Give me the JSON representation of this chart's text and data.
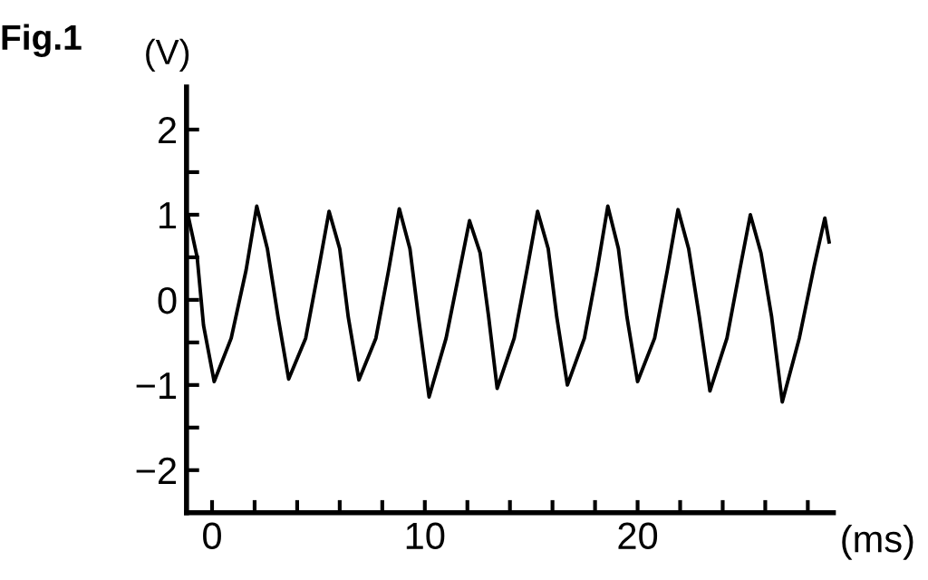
{
  "chart_data": {
    "type": "line",
    "title": "Fig.1",
    "ylabel": "(V)",
    "xlabel": "(ms)",
    "x": [
      -1.1,
      -0.7,
      -0.4,
      0.1,
      0.9,
      1.6,
      2.1,
      2.6,
      3.1,
      3.6,
      4.4,
      5.0,
      5.5,
      6.0,
      6.4,
      6.9,
      7.7,
      8.3,
      8.8,
      9.3,
      9.7,
      10.2,
      11.0,
      11.6,
      12.1,
      12.6,
      13.0,
      13.4,
      14.2,
      14.8,
      15.3,
      15.8,
      16.2,
      16.7,
      17.5,
      18.1,
      18.6,
      19.1,
      19.5,
      20.0,
      20.8,
      21.4,
      21.9,
      22.4,
      22.9,
      23.4,
      24.2,
      24.8,
      25.3,
      25.8,
      26.3,
      26.8,
      27.6,
      28.3,
      28.8,
      29.0
    ],
    "series": [
      {
        "color": "#000000",
        "values": [
          0.96,
          0.5,
          -0.3,
          -0.96,
          -0.45,
          0.35,
          1.1,
          0.6,
          -0.2,
          -0.93,
          -0.45,
          0.35,
          1.04,
          0.6,
          -0.2,
          -0.94,
          -0.45,
          0.35,
          1.07,
          0.6,
          -0.2,
          -1.14,
          -0.45,
          0.3,
          0.93,
          0.55,
          -0.2,
          -1.04,
          -0.45,
          0.35,
          1.04,
          0.6,
          -0.2,
          -1.0,
          -0.45,
          0.35,
          1.1,
          0.6,
          -0.2,
          -0.96,
          -0.45,
          0.35,
          1.06,
          0.6,
          -0.2,
          -1.07,
          -0.45,
          0.35,
          1.0,
          0.55,
          -0.2,
          -1.2,
          -0.45,
          0.4,
          0.96,
          0.68
        ]
      }
    ],
    "xlim": [
      -1.2,
      29.2
    ],
    "xticks": [
      0,
      {
        "value": 2,
        "label": null
      },
      {
        "value": 4,
        "label": null
      },
      {
        "value": 6,
        "label": null
      },
      {
        "value": 8,
        "label": null
      },
      10,
      {
        "value": 12,
        "label": null
      },
      {
        "value": 14,
        "label": null
      },
      {
        "value": 16,
        "label": null
      },
      {
        "value": 18,
        "label": null
      },
      20,
      {
        "value": 22,
        "label": null
      },
      {
        "value": 24,
        "label": null
      },
      {
        "value": 26,
        "label": null
      },
      {
        "value": 28,
        "label": null
      }
    ],
    "ylim": [
      -2.5,
      2.5
    ],
    "yticks": [
      {
        "value": -2,
        "label": "−2"
      },
      {
        "value": -1.5,
        "label": null
      },
      {
        "value": -1,
        "label": "−1"
      },
      {
        "value": -0.5,
        "label": null
      },
      0,
      {
        "value": 0.5,
        "label": null
      },
      1,
      {
        "value": 1.5,
        "label": null
      },
      2
    ],
    "grid": false,
    "legend": false,
    "marker": "none",
    "line_style": "solid"
  }
}
